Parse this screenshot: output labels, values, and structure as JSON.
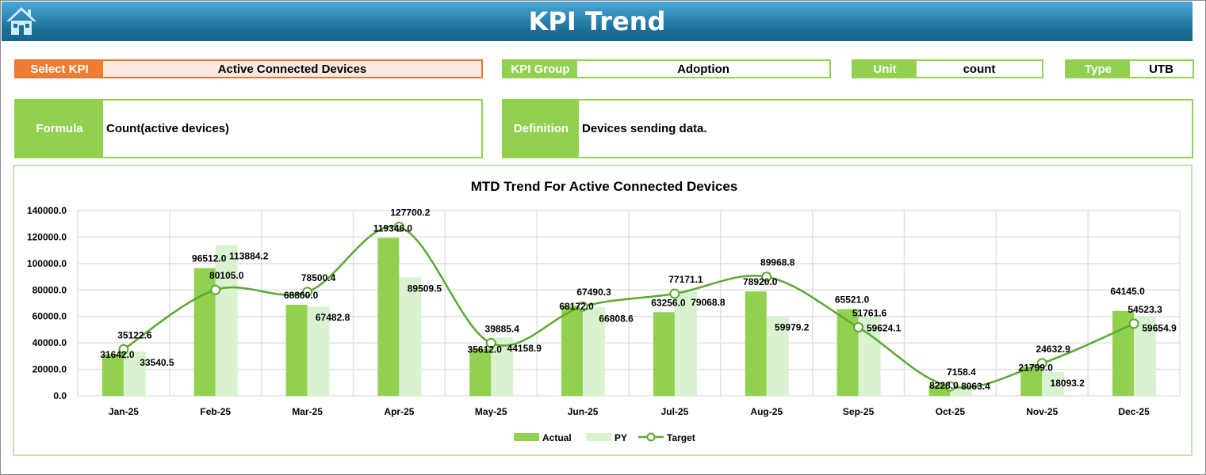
{
  "header": {
    "title": "KPI Trend",
    "home_icon": "home-icon"
  },
  "select_kpi": {
    "label": "Select KPI",
    "value": "Active Connected Devices"
  },
  "kpi_group": {
    "label": "KPI Group",
    "value": "Adoption"
  },
  "unit": {
    "label": "Unit",
    "value": "count"
  },
  "type": {
    "label": "Type",
    "value": "UTB"
  },
  "formula": {
    "label": "Formula",
    "value": "Count(active devices)"
  },
  "definition": {
    "label": "Definition",
    "value": "Devices sending data."
  },
  "colors": {
    "actual": "#92d050",
    "py": "#d9f2d0",
    "target": "#5aa832",
    "header": "#1d6f98",
    "select": "#ed7d31"
  },
  "chart_data": {
    "type": "bar",
    "title": "MTD Trend For Active Connected Devices",
    "categories": [
      "Jan-25",
      "Feb-25",
      "Mar-25",
      "Apr-25",
      "May-25",
      "Jun-25",
      "Jul-25",
      "Aug-25",
      "Sep-25",
      "Oct-25",
      "Nov-25",
      "Dec-25"
    ],
    "ylim": [
      0,
      140000
    ],
    "yticks": [
      "0.0",
      "20000.0",
      "40000.0",
      "60000.0",
      "80000.0",
      "100000.0",
      "120000.0",
      "140000.0"
    ],
    "grid": true,
    "legend": "bottom",
    "series": [
      {
        "name": "Actual",
        "kind": "bar",
        "values": [
          31642.0,
          96512.0,
          68860.0,
          119346.0,
          35612.0,
          68172.0,
          63256.0,
          78920.0,
          65521.0,
          8228.0,
          21799.0,
          64145.0
        ]
      },
      {
        "name": "PY",
        "kind": "bar",
        "values": [
          33540.5,
          113884.2,
          67482.8,
          89509.5,
          44158.9,
          66808.6,
          79068.8,
          59979.2,
          59624.1,
          8063.4,
          18093.2,
          59654.9
        ]
      },
      {
        "name": "Target",
        "kind": "line",
        "values": [
          35122.6,
          80105.0,
          78500.4,
          127700.2,
          39885.4,
          67490.3,
          77171.1,
          89968.8,
          51761.6,
          7158.4,
          24632.9,
          54523.3
        ]
      }
    ]
  }
}
